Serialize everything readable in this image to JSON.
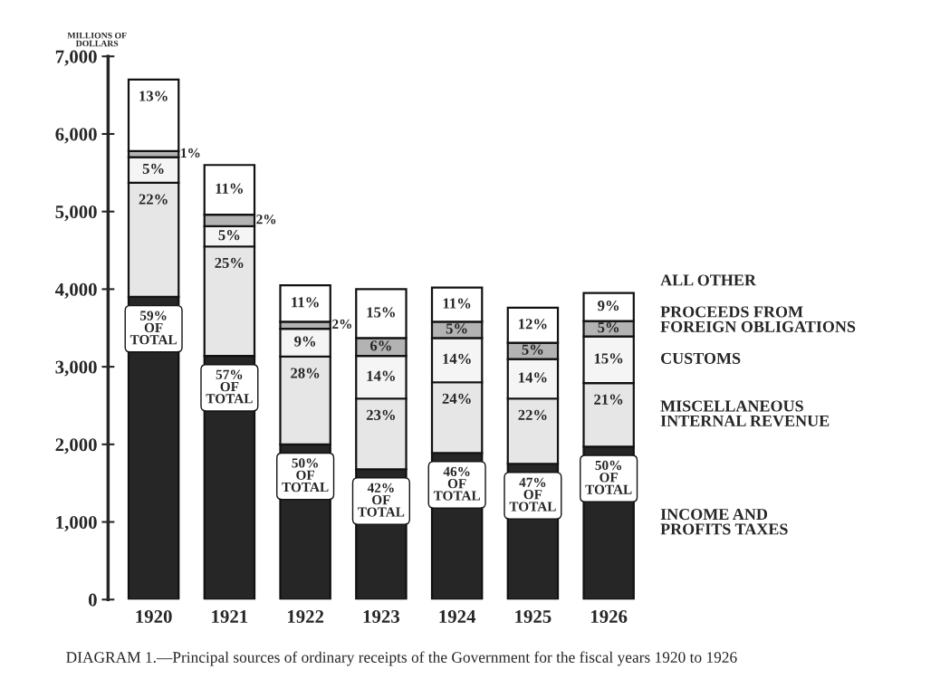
{
  "chart_data": {
    "type": "bar",
    "stacked": true,
    "categories": [
      "1920",
      "1921",
      "1922",
      "1923",
      "1924",
      "1925",
      "1926"
    ],
    "ylabel": "MILLIONS OF\nDOLLARS",
    "ylim": [
      0,
      7000
    ],
    "yticks": [
      0,
      {
        "value": 1000,
        "label": "1,000"
      },
      {
        "value": 2000,
        "label": "2,000"
      },
      {
        "value": 3000,
        "label": "3,000"
      },
      {
        "value": 4000,
        "label": "4,000"
      },
      {
        "value": 5000,
        "label": "5,000"
      },
      {
        "value": 6000,
        "label": "6,000"
      },
      {
        "value": 7000,
        "label": "7,000"
      }
    ],
    "series": [
      {
        "name": "INCOME AND\nPROFITS TAXES",
        "color": "#262626",
        "values": [
          3900,
          3140,
          2000,
          1680,
          1890,
          1750,
          1970
        ]
      },
      {
        "name": "MISCELLANEOUS\nINTERNAL REVENUE",
        "color": "#e6e6e6",
        "values": [
          1470,
          1410,
          1130,
          910,
          910,
          840,
          820
        ]
      },
      {
        "name": "CUSTOMS",
        "color": "#f5f5f5",
        "values": [
          330,
          260,
          360,
          550,
          570,
          510,
          600
        ]
      },
      {
        "name": "PROCEEDS FROM\nFOREIGN OBLIGATIONS",
        "color": "#b3b3b3",
        "values": [
          80,
          150,
          90,
          230,
          210,
          210,
          200
        ]
      },
      {
        "name": "ALL OTHER",
        "color": "#ffffff",
        "values": [
          920,
          640,
          470,
          630,
          440,
          450,
          360
        ]
      }
    ],
    "legend": false,
    "grid": false,
    "annotations": [
      {
        "text": "59%\nOF\nTOTAL",
        "x": "1920",
        "y": 3900
      },
      {
        "text": "57%\nOF\nTOTAL",
        "x": "1921",
        "y": 3140
      },
      {
        "text": "50%\nOF\nTOTAL",
        "x": "1922",
        "y": 2000
      },
      {
        "text": "42%\nOF\nTOTAL",
        "x": "1923",
        "y": 1680
      },
      {
        "text": "46%\nOF\nTOTAL",
        "x": "1924",
        "y": 1890
      },
      {
        "text": "47%\nOF\nTOTAL",
        "x": "1925",
        "y": 1750
      },
      {
        "text": "50%\nOF\nTOTAL",
        "x": "1926",
        "y": 1970
      },
      {
        "text": "22%",
        "x": "1920",
        "y": 5370
      },
      {
        "text": "25%",
        "x": "1921",
        "y": 4550
      },
      {
        "text": "28%",
        "x": "1922",
        "y": 3130
      },
      {
        "text": "23%",
        "x": "1923",
        "y": 2590
      },
      {
        "text": "24%",
        "x": "1924",
        "y": 2800
      },
      {
        "text": "22%",
        "x": "1925",
        "y": 2590
      },
      {
        "text": "21%",
        "x": "1926",
        "y": 2790
      },
      {
        "text": "5%",
        "x": "1920",
        "y": 5700
      },
      {
        "text": "5%",
        "x": "1921",
        "y": 4810
      },
      {
        "text": "9%",
        "x": "1922",
        "y": 3490
      },
      {
        "text": "14%",
        "x": "1923",
        "y": 3140
      },
      {
        "text": "14%",
        "x": "1924",
        "y": 3370
      },
      {
        "text": "14%",
        "x": "1925",
        "y": 3100
      },
      {
        "text": "15%",
        "x": "1926",
        "y": 3390
      },
      {
        "text": "1%",
        "x": "1920",
        "y": 5780
      },
      {
        "text": "2%",
        "x": "1921",
        "y": 4960
      },
      {
        "text": "2%",
        "x": "1922",
        "y": 3580
      },
      {
        "text": "6%",
        "x": "1923",
        "y": 3370
      },
      {
        "text": "5%",
        "x": "1924",
        "y": 3580
      },
      {
        "text": "5%",
        "x": "1925",
        "y": 3310
      },
      {
        "text": "5%",
        "x": "1926",
        "y": 3590
      },
      {
        "text": "13%",
        "x": "1920",
        "y": 6700
      },
      {
        "text": "11%",
        "x": "1921",
        "y": 5600
      },
      {
        "text": "11%",
        "x": "1922",
        "y": 4050
      },
      {
        "text": "15%",
        "x": "1923",
        "y": 4000
      },
      {
        "text": "11%",
        "x": "1924",
        "y": 4020
      },
      {
        "text": "12%",
        "x": "1925",
        "y": 3760
      },
      {
        "text": "9%",
        "x": "1926",
        "y": 3950
      },
      "DIAGRAM 1.—Principal sources of ordinary receipts of the Government for the fiscal years 1920 to 1926"
    ]
  }
}
